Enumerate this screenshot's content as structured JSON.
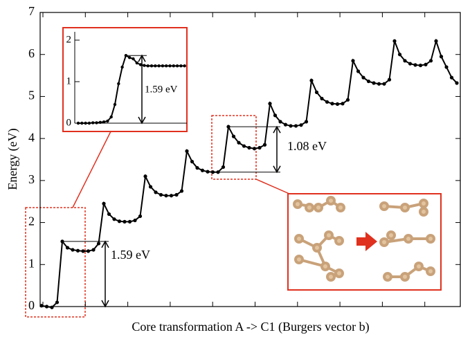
{
  "chart_data": [
    {
      "type": "line",
      "ylabel": "Energy (eV)",
      "xlabel": "Core transformation A -> C1 (Burgers vector b)",
      "color": "#000000",
      "ylim": [
        0,
        7
      ],
      "yticks": [
        0,
        1,
        2,
        3,
        4,
        5,
        6,
        7
      ],
      "values": [
        0.02,
        0,
        -0.02,
        0.1,
        1.55,
        1.4,
        1.35,
        1.33,
        1.32,
        1.32,
        1.35,
        1.5,
        2.45,
        2.2,
        2.08,
        2.03,
        2.02,
        2.02,
        2.05,
        2.15,
        3.1,
        2.85,
        2.72,
        2.66,
        2.64,
        2.64,
        2.66,
        2.75,
        3.7,
        3.45,
        3.3,
        3.24,
        3.21,
        3.2,
        3.2,
        3.32,
        4.28,
        4.05,
        3.9,
        3.82,
        3.78,
        3.76,
        3.78,
        3.85,
        4.83,
        4.55,
        4.4,
        4.33,
        4.3,
        4.3,
        4.32,
        4.4,
        5.38,
        5.1,
        4.95,
        4.87,
        4.83,
        4.82,
        4.83,
        4.92,
        5.85,
        5.6,
        5.45,
        5.36,
        5.32,
        5.3,
        5.3,
        5.4,
        6.32,
        6.0,
        5.85,
        5.78,
        5.75,
        5.74,
        5.76,
        5.85,
        6.32,
        5.95,
        5.7,
        5.45,
        5.32
      ],
      "annotations": [
        "1.59 eV",
        "1.08 eV"
      ]
    },
    {
      "type": "line",
      "color": "#000000",
      "ylim": [
        0,
        2.2
      ],
      "yticks": [
        0,
        1,
        2
      ],
      "values": [
        0,
        0,
        0,
        0,
        0.01,
        0.01,
        0.02,
        0.03,
        0.05,
        0.15,
        0.45,
        0.95,
        1.35,
        1.63,
        1.58,
        1.55,
        1.45,
        1.41,
        1.39,
        1.38,
        1.38,
        1.38,
        1.38,
        1.38,
        1.38,
        1.38,
        1.38,
        1.38,
        1.38,
        1.38
      ],
      "annotations": [
        "1.59 eV"
      ]
    }
  ]
}
